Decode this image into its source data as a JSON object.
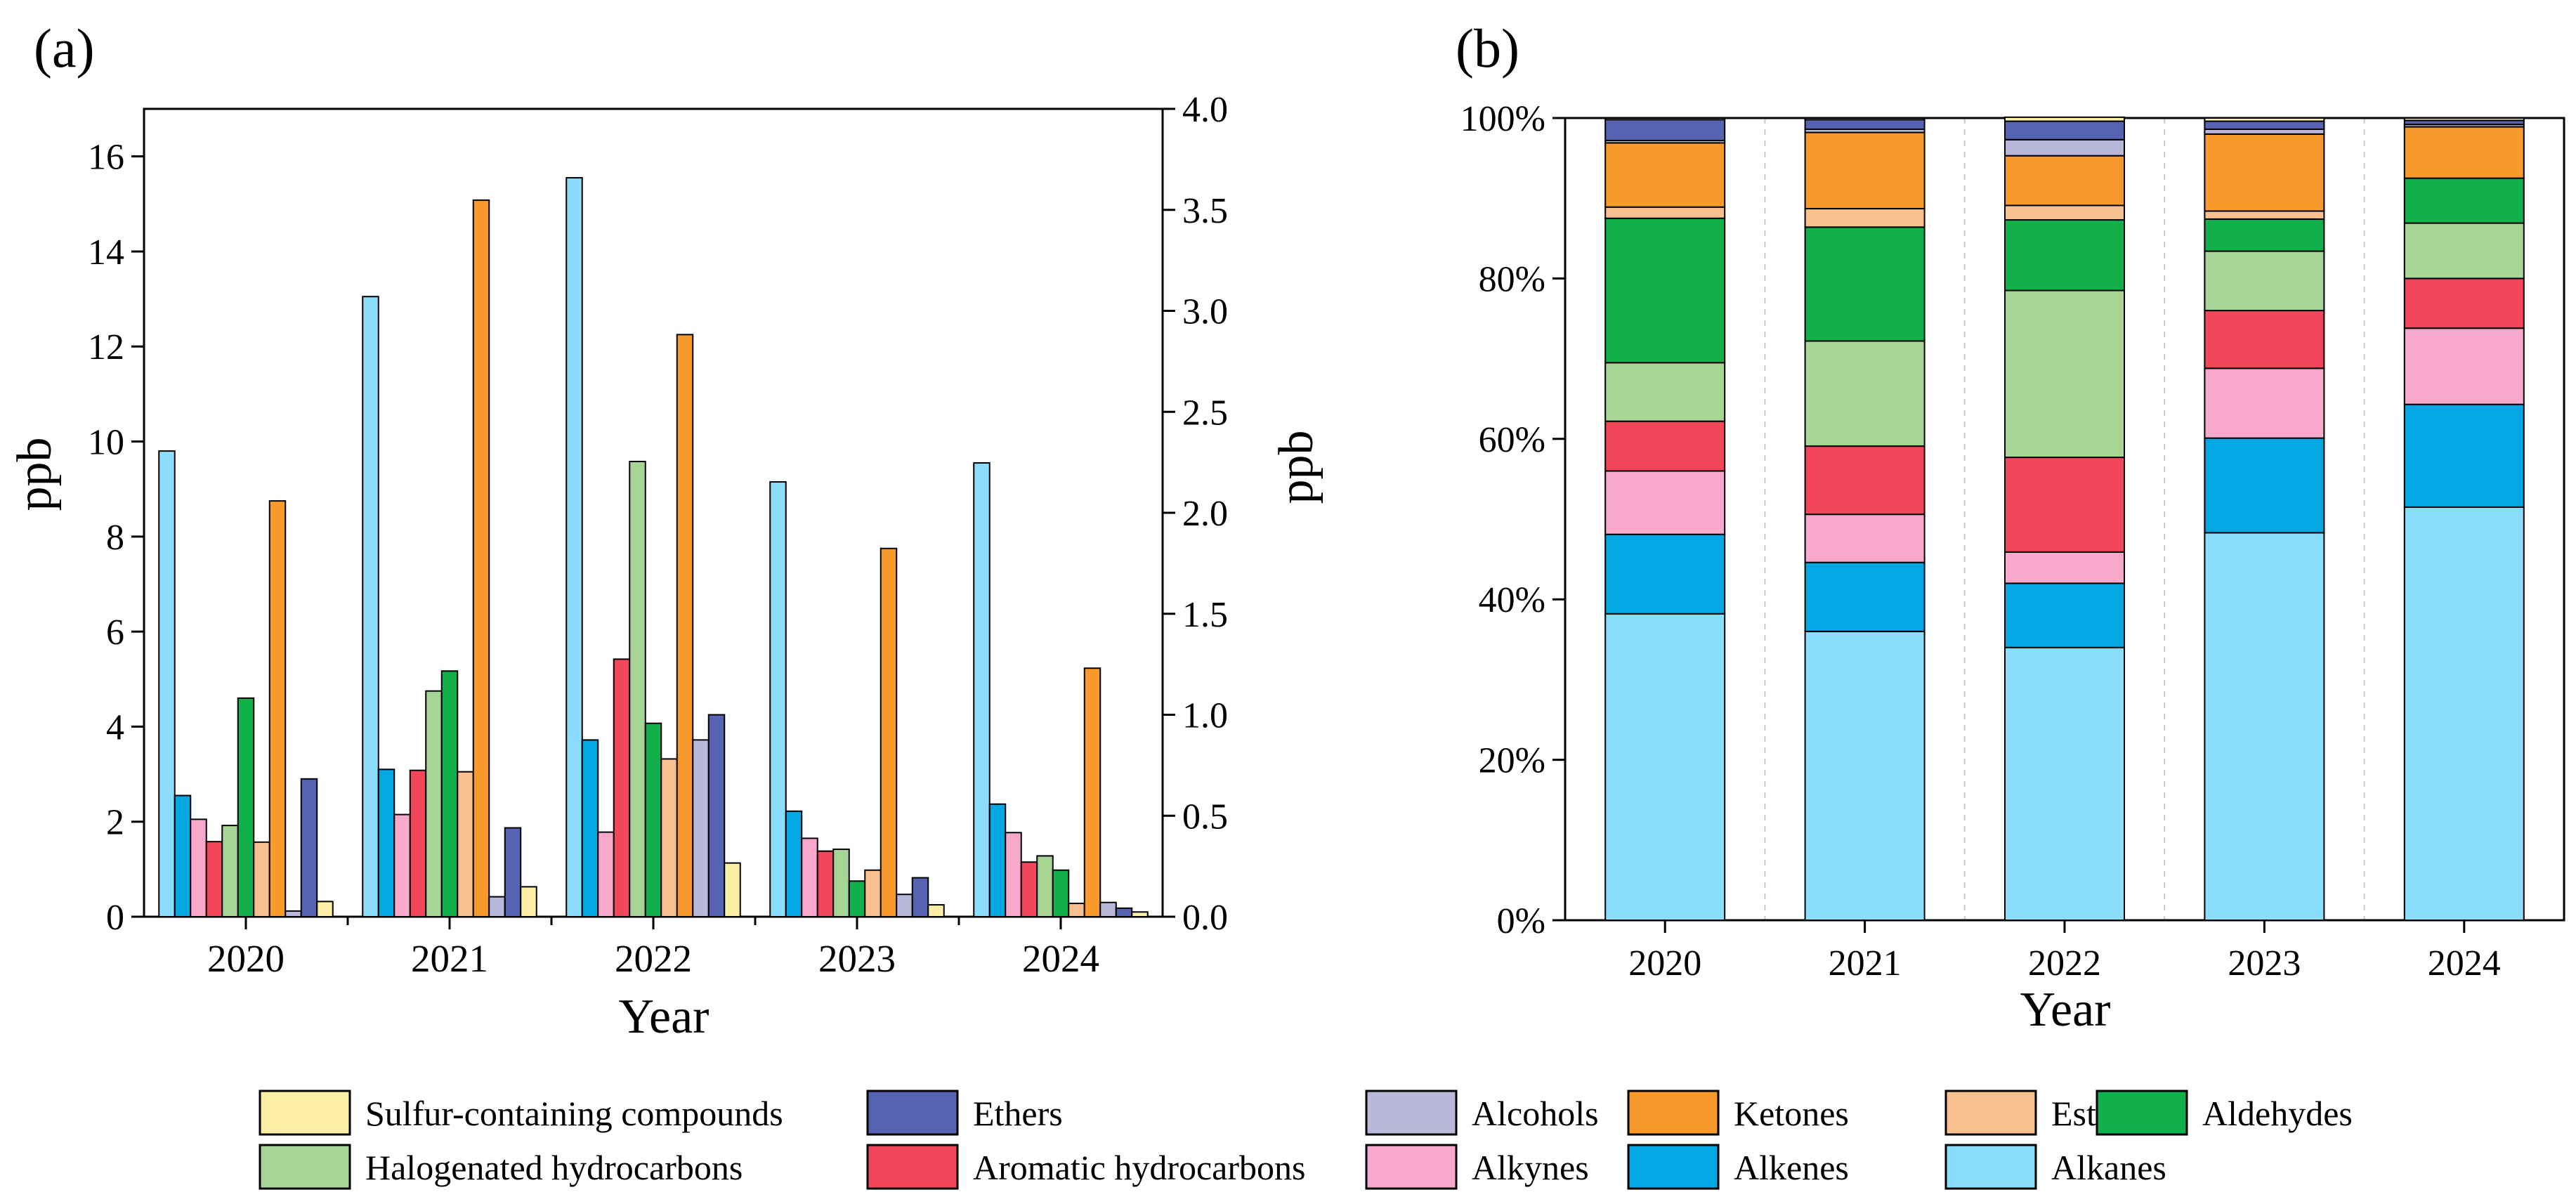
{
  "colors": {
    "Sulfur-containing compounds": "#FCEFA5",
    "Ethers": "#5563B0",
    "Alcohols": "#B9B8DA",
    "Ketones": "#F89A2B",
    "Esters": "#F8C08E",
    "Aldehydes": "#12B04B",
    "Halogenated hydrocarbons": "#A7D596",
    "Aromatic hydrocarbons": "#F2475A",
    "Alkynes": "#F8A9CB",
    "Alkenes": "#04A7E2",
    "Alkanes": "#8ADDFB"
  },
  "legend": {
    "rows": [
      [
        "Sulfur-containing compounds",
        "Ethers",
        "Alcohols",
        "Ketones",
        "Esters",
        "Aldehydes"
      ],
      [
        "Halogenated hydrocarbons",
        "Aromatic hydrocarbons",
        "Alkynes",
        "Alkenes",
        "Alkanes"
      ]
    ]
  },
  "chart_data": [
    {
      "panel_label": "(a)",
      "type": "bar",
      "xlabel": "Year",
      "ylabel": "ppb",
      "ylabel_right": "ppb",
      "ylim": [
        0,
        17
      ],
      "ylim_right": [
        0,
        4.0
      ],
      "yticks": [
        "0",
        "2",
        "4",
        "6",
        "8",
        "10",
        "12",
        "14",
        "16"
      ],
      "yticks_right": [
        "0.0",
        "0.5",
        "1.0",
        "1.5",
        "2.0",
        "2.5",
        "3.0",
        "3.5",
        "4.0"
      ],
      "categories": [
        "2020",
        "2021",
        "2022",
        "2023",
        "2024"
      ],
      "series": [
        {
          "name": "Alkanes",
          "values": [
            9.8,
            13.05,
            15.55,
            9.15,
            9.55
          ]
        },
        {
          "name": "Alkenes",
          "values": [
            2.55,
            3.1,
            3.72,
            2.22,
            2.37
          ]
        },
        {
          "name": "Alkynes",
          "values": [
            2.05,
            2.15,
            1.78,
            1.65,
            1.77
          ]
        },
        {
          "name": "Aromatic hydrocarbons",
          "values": [
            1.58,
            3.08,
            5.42,
            1.38,
            1.15
          ]
        },
        {
          "name": "Halogenated hydrocarbons",
          "values": [
            1.92,
            4.75,
            9.58,
            1.42,
            1.28
          ]
        },
        {
          "name": "Aldehydes",
          "values": [
            4.6,
            5.17,
            4.07,
            0.75,
            0.98
          ]
        },
        {
          "name": "Esters",
          "values": [
            1.57,
            3.05,
            3.32,
            0.98,
            0.28
          ]
        },
        {
          "name": "Ketones",
          "values": [
            8.75,
            15.08,
            12.25,
            7.75,
            5.23
          ]
        },
        {
          "name": "Alcohols",
          "values": [
            0.12,
            0.42,
            3.72,
            0.47,
            0.3
          ]
        },
        {
          "name": "Ethers",
          "values": [
            2.9,
            1.87,
            4.25,
            0.82,
            0.18
          ]
        },
        {
          "name": "Sulfur-containing compounds",
          "values": [
            0.32,
            0.63,
            1.13,
            0.25,
            0.1
          ]
        }
      ]
    },
    {
      "panel_label": "(b)",
      "type": "bar",
      "stacked": true,
      "percent": true,
      "xlabel": "Year",
      "ylabel": "",
      "ylim": [
        0,
        100
      ],
      "yticks": [
        "0%",
        "20%",
        "40%",
        "60%",
        "80%",
        "100%"
      ],
      "categories": [
        "2020",
        "2021",
        "2022",
        "2023",
        "2024"
      ],
      "series": [
        {
          "name": "Alkanes",
          "values": [
            38.2,
            36.0,
            34.0,
            48.3,
            51.5
          ]
        },
        {
          "name": "Alkenes",
          "values": [
            9.9,
            8.6,
            8.0,
            11.8,
            12.8
          ]
        },
        {
          "name": "Alkynes",
          "values": [
            7.9,
            6.0,
            3.9,
            8.7,
            9.5
          ]
        },
        {
          "name": "Aromatic hydrocarbons",
          "values": [
            6.2,
            8.5,
            11.8,
            7.2,
            6.2
          ]
        },
        {
          "name": "Halogenated hydrocarbons",
          "values": [
            7.3,
            13.1,
            20.8,
            7.4,
            6.9
          ]
        },
        {
          "name": "Aldehydes",
          "values": [
            18.0,
            14.2,
            8.8,
            4.0,
            5.6
          ]
        },
        {
          "name": "Esters",
          "values": [
            1.4,
            2.3,
            1.8,
            1.0,
            0.0
          ]
        },
        {
          "name": "Ketones",
          "values": [
            8.0,
            9.5,
            6.2,
            9.6,
            6.4
          ]
        },
        {
          "name": "Alcohols",
          "values": [
            0.3,
            0.4,
            2.0,
            0.6,
            0.3
          ]
        },
        {
          "name": "Ethers",
          "values": [
            2.6,
            1.2,
            2.3,
            1.0,
            0.5
          ]
        },
        {
          "name": "Sulfur-containing compounds",
          "values": [
            0.2,
            0.2,
            0.5,
            0.4,
            0.3
          ]
        }
      ]
    }
  ]
}
